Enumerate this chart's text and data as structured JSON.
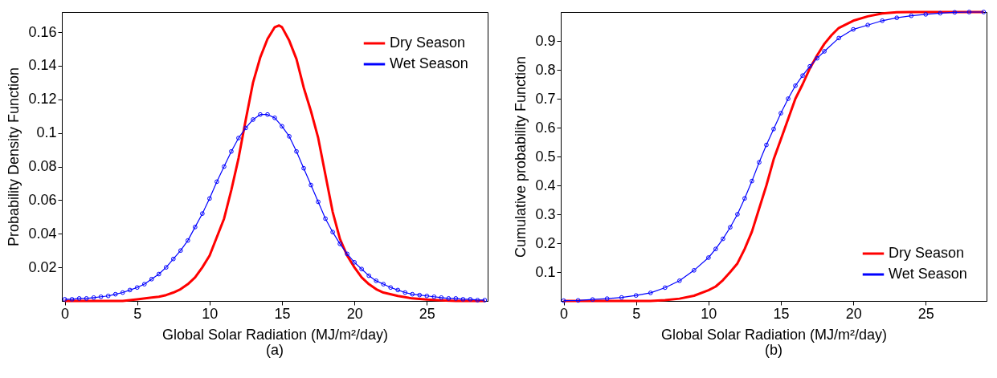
{
  "chart_data": [
    {
      "type": "line",
      "title": "(a)",
      "xlabel": "Global Solar Radiation (MJ/m²/day)",
      "ylabel": "Probability Density Function",
      "xlim": [
        -0.2,
        29.2
      ],
      "xticks": [
        0,
        5,
        10,
        15,
        20,
        25
      ],
      "ylim": [
        0,
        0.172
      ],
      "yticks": [
        0.02,
        0.04,
        0.06,
        0.08,
        0.1,
        0.12,
        0.14,
        0.16
      ],
      "grid": false,
      "legend": "top right",
      "series": [
        {
          "name": "Dry Season",
          "color": "#ff0000",
          "marker": "none",
          "x": [
            0,
            1,
            2,
            3,
            4,
            5,
            6,
            6.5,
            7,
            7.5,
            8,
            8.5,
            9,
            9.5,
            10,
            10.5,
            11,
            11.5,
            12,
            12.5,
            13,
            13.5,
            14,
            14.5,
            14.8,
            15,
            15.5,
            16,
            16.5,
            17,
            17.5,
            18,
            18.5,
            19,
            19.5,
            20,
            20.5,
            21,
            21.5,
            22,
            23,
            24,
            25,
            26,
            27,
            28,
            29
          ],
          "values": [
            0,
            0,
            0,
            0,
            0,
            0.001,
            0.002,
            0.0025,
            0.0035,
            0.005,
            0.007,
            0.01,
            0.014,
            0.02,
            0.027,
            0.038,
            0.049,
            0.066,
            0.085,
            0.108,
            0.13,
            0.145,
            0.156,
            0.163,
            0.164,
            0.163,
            0.155,
            0.144,
            0.127,
            0.113,
            0.097,
            0.075,
            0.053,
            0.037,
            0.027,
            0.02,
            0.014,
            0.01,
            0.007,
            0.005,
            0.003,
            0.0015,
            0.0008,
            0.0004,
            0,
            0,
            0
          ]
        },
        {
          "name": "Wet Season",
          "color": "#0000ff",
          "marker": "circle",
          "x": [
            0,
            0.5,
            1,
            1.5,
            2,
            2.5,
            3,
            3.5,
            4,
            4.5,
            5,
            5.5,
            6,
            6.5,
            7,
            7.5,
            8,
            8.5,
            9,
            9.5,
            10,
            10.5,
            11,
            11.5,
            12,
            12.5,
            13,
            13.5,
            14,
            14.5,
            15,
            15.5,
            16,
            16.5,
            17,
            17.5,
            18,
            18.5,
            19,
            19.5,
            20,
            20.5,
            21,
            21.5,
            22,
            22.5,
            23,
            23.5,
            24,
            24.5,
            25,
            25.5,
            26,
            26.5,
            27,
            27.5,
            28,
            28.5,
            29
          ],
          "values": [
            0.001,
            0.001,
            0.0015,
            0.0015,
            0.002,
            0.0025,
            0.003,
            0.004,
            0.005,
            0.0065,
            0.008,
            0.01,
            0.013,
            0.016,
            0.02,
            0.025,
            0.03,
            0.036,
            0.044,
            0.052,
            0.061,
            0.071,
            0.08,
            0.089,
            0.097,
            0.103,
            0.108,
            0.111,
            0.111,
            0.109,
            0.104,
            0.098,
            0.089,
            0.079,
            0.069,
            0.059,
            0.049,
            0.041,
            0.034,
            0.028,
            0.023,
            0.019,
            0.015,
            0.012,
            0.01,
            0.008,
            0.0065,
            0.005,
            0.004,
            0.0035,
            0.003,
            0.0025,
            0.002,
            0.0015,
            0.0015,
            0.001,
            0.001,
            0.0005,
            0.0005
          ]
        }
      ]
    },
    {
      "type": "line",
      "title": "(b)",
      "xlabel": "Global Solar Radiation (MJ/m²/day)",
      "ylabel": "Cumulative probability Function",
      "xlim": [
        -0.2,
        29.2
      ],
      "xticks": [
        0,
        5,
        10,
        15,
        20,
        25
      ],
      "ylim": [
        0,
        1
      ],
      "yticks": [
        0.1,
        0.2,
        0.3,
        0.4,
        0.5,
        0.6,
        0.7,
        0.8,
        0.9
      ],
      "grid": false,
      "legend": "bottom right",
      "series": [
        {
          "name": "Dry Season",
          "color": "#ff0000",
          "marker": "none",
          "x": [
            0,
            2,
            4,
            6,
            7,
            8,
            9,
            10,
            10.5,
            11,
            11.5,
            12,
            12.5,
            13,
            13.5,
            14,
            14.5,
            15,
            15.5,
            16,
            16.5,
            17,
            17.5,
            18,
            18.5,
            19,
            20,
            21,
            22,
            23,
            24,
            26,
            29
          ],
          "values": [
            0,
            0,
            0,
            0,
            0.003,
            0.008,
            0.018,
            0.037,
            0.05,
            0.072,
            0.1,
            0.13,
            0.18,
            0.24,
            0.32,
            0.4,
            0.49,
            0.56,
            0.63,
            0.7,
            0.75,
            0.805,
            0.85,
            0.89,
            0.92,
            0.945,
            0.97,
            0.985,
            0.995,
            0.999,
            1,
            1,
            1
          ]
        },
        {
          "name": "Wet Season",
          "color": "#0000ff",
          "marker": "circle",
          "x": [
            0,
            1,
            2,
            3,
            4,
            5,
            6,
            7,
            8,
            9,
            10,
            10.5,
            11,
            11.5,
            12,
            12.5,
            13,
            13.5,
            14,
            14.5,
            15,
            15.5,
            16,
            16.5,
            17,
            17.5,
            18,
            19,
            20,
            21,
            22,
            23,
            24,
            25,
            26,
            27,
            28,
            29
          ],
          "values": [
            0.001,
            0.002,
            0.005,
            0.008,
            0.012,
            0.019,
            0.028,
            0.046,
            0.07,
            0.106,
            0.15,
            0.18,
            0.215,
            0.255,
            0.3,
            0.355,
            0.415,
            0.48,
            0.54,
            0.595,
            0.65,
            0.7,
            0.745,
            0.78,
            0.812,
            0.84,
            0.864,
            0.91,
            0.94,
            0.955,
            0.97,
            0.98,
            0.987,
            0.992,
            0.996,
            0.999,
            1,
            1
          ]
        }
      ]
    }
  ]
}
